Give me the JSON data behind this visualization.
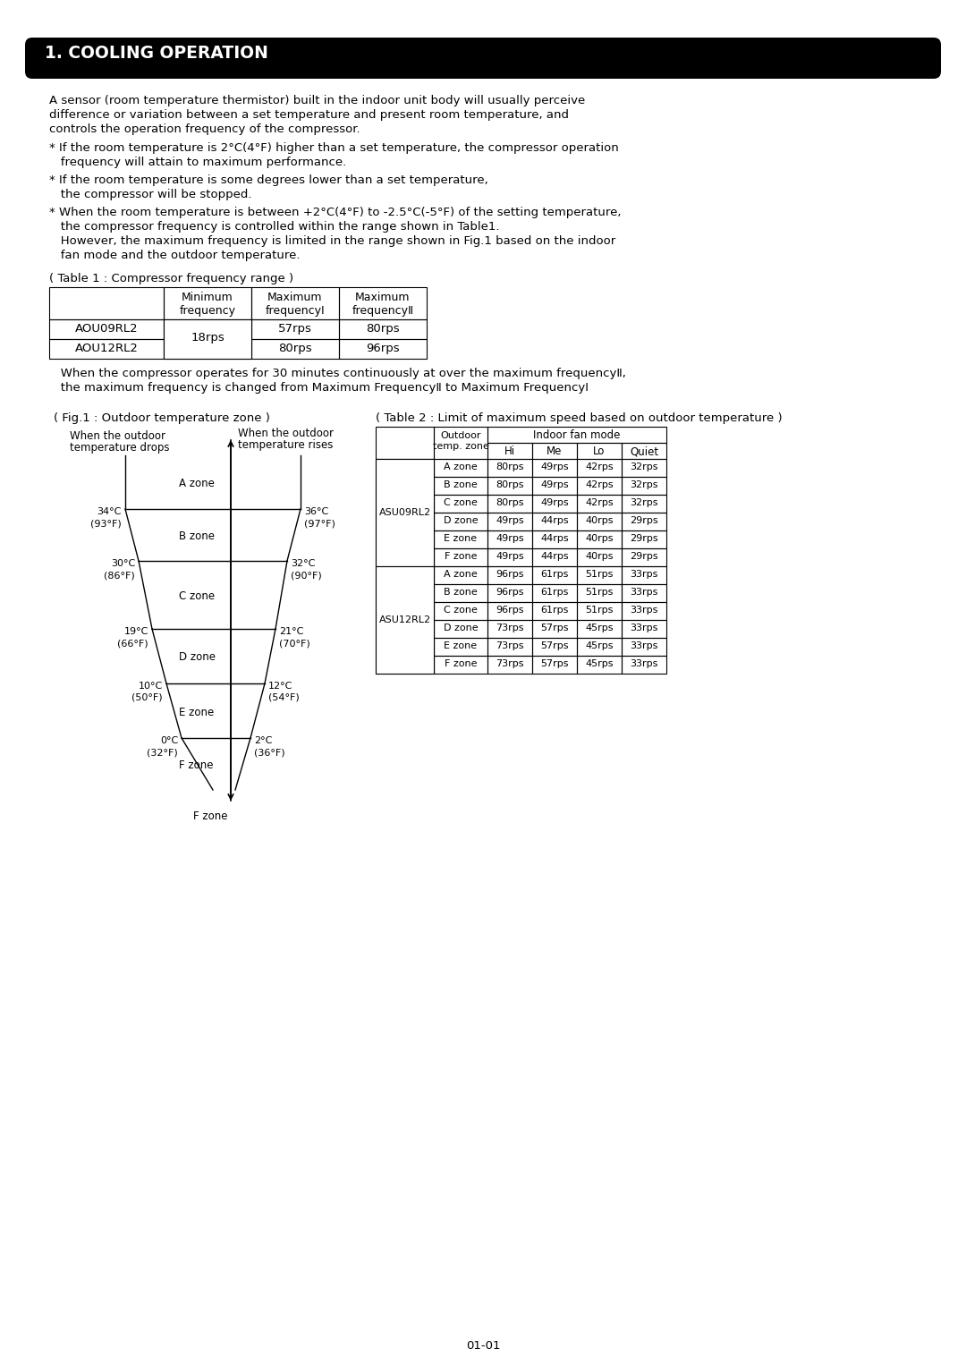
{
  "title": "1. COOLING OPERATION",
  "title_bg": "#000000",
  "title_color": "#ffffff",
  "body_text": [
    "A sensor (room temperature thermistor) built in the indoor unit body will usually perceive",
    "difference or variation between a set temperature and present room temperature, and",
    "controls the operation frequency of the compressor."
  ],
  "bullet1_line1": "* If the room temperature is 2°C(4°F) higher than a set temperature, the compressor operation",
  "bullet1_line2": "   frequency will attain to maximum performance.",
  "bullet2_line1": "* If the room temperature is some degrees lower than a set temperature,",
  "bullet2_line2": "   the compressor will be stopped.",
  "bullet3_line1": "* When the room temperature is between +2°C(4°F) to -2.5°C(-5°F) of the setting temperature,",
  "bullet3_line2": "   the compressor frequency is controlled within the range shown in Table1.",
  "bullet3_line3": "   However, the maximum frequency is limited in the range shown in Fig.1 based on the indoor",
  "bullet3_line4": "   fan mode and the outdoor temperature.",
  "table1_caption": "( Table 1 : Compressor frequency range )",
  "table1_headers": [
    "",
    "Minimum\nfrequency",
    "Maximum\nfrequencyI",
    "Maximum\nfrequencyⅡ"
  ],
  "table1_row1": [
    "AOU09RL2",
    "18rps",
    "57rps",
    "80rps"
  ],
  "table1_row2": [
    "AOU12RL2",
    "18rps",
    "80rps",
    "96rps"
  ],
  "note_text1": "   When the compressor operates for 30 minutes continuously at over the maximum frequencyⅡ,",
  "note_text2": "   the maximum frequency is changed from Maximum FrequencyⅡ to Maximum FrequencyⅠ",
  "fig1_caption": "( Fig.1 : Outdoor temperature zone )",
  "table2_caption": "( Table 2 : Limit of maximum speed based on outdoor temperature )",
  "fig1_left_label1": "When the outdoor",
  "fig1_left_label2": "temperature drops",
  "fig1_right_label1": "When the outdoor",
  "fig1_right_label2": "temperature rises",
  "zones": [
    "A zone",
    "B zone",
    "C zone",
    "D zone",
    "E zone",
    "F zone"
  ],
  "left_temps_c": [
    "34°C",
    "30°C",
    "19°C",
    "10°C",
    "0°C"
  ],
  "left_temps_f": [
    "(93°F)",
    "(86°F)",
    "(66°F)",
    "(50°F)",
    "(32°F)"
  ],
  "right_temps_c": [
    "36°C",
    "32°C",
    "21°C",
    "12°C",
    "2°C"
  ],
  "right_temps_f": [
    "(97°F)",
    "(90°F)",
    "(70°F)",
    "(54°F)",
    "(36°F)"
  ],
  "table2_rows": [
    [
      "ASU09RL2",
      "A zone",
      "80rps",
      "49rps",
      "42rps",
      "32rps"
    ],
    [
      "",
      "B zone",
      "80rps",
      "49rps",
      "42rps",
      "32rps"
    ],
    [
      "",
      "C zone",
      "80rps",
      "49rps",
      "42rps",
      "32rps"
    ],
    [
      "",
      "D zone",
      "49rps",
      "44rps",
      "40rps",
      "29rps"
    ],
    [
      "",
      "E zone",
      "49rps",
      "44rps",
      "40rps",
      "29rps"
    ],
    [
      "",
      "F zone",
      "49rps",
      "44rps",
      "40rps",
      "29rps"
    ],
    [
      "ASU12RL2",
      "A zone",
      "96rps",
      "61rps",
      "51rps",
      "33rps"
    ],
    [
      "",
      "B zone",
      "96rps",
      "61rps",
      "51rps",
      "33rps"
    ],
    [
      "",
      "C zone",
      "96rps",
      "61rps",
      "51rps",
      "33rps"
    ],
    [
      "",
      "D zone",
      "73rps",
      "57rps",
      "45rps",
      "33rps"
    ],
    [
      "",
      "E zone",
      "73rps",
      "57rps",
      "45rps",
      "33rps"
    ],
    [
      "",
      "F zone",
      "73rps",
      "57rps",
      "45rps",
      "33rps"
    ]
  ],
  "page_number": "01-01",
  "background_color": "#ffffff",
  "font_size_body": 9.5,
  "font_size_title": 13.5
}
